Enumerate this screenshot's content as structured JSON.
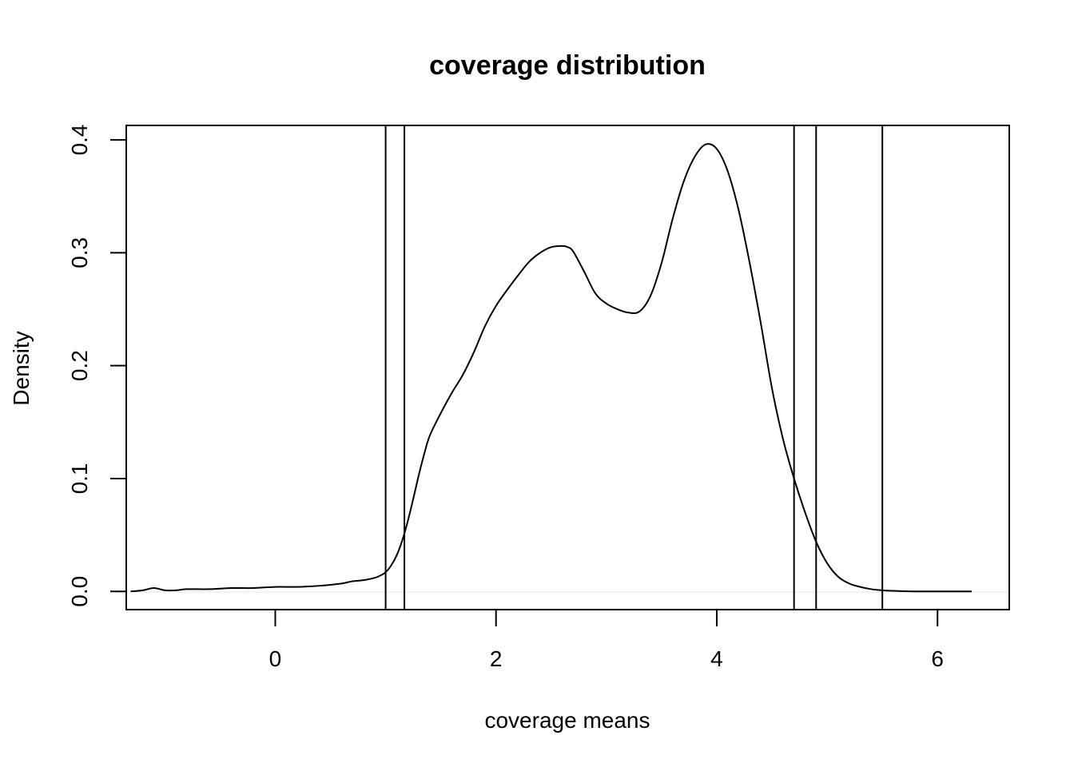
{
  "chart_data": {
    "type": "line",
    "title": "coverage distribution",
    "xlabel": "coverage means",
    "ylabel": "Density",
    "xlim": [
      -1.35,
      6.65
    ],
    "ylim": [
      -0.0161,
      0.4128
    ],
    "x_ticks": [
      0,
      2,
      4,
      6
    ],
    "x_tick_labels": [
      "0",
      "2",
      "4",
      "6"
    ],
    "y_ticks": [
      0.0,
      0.1,
      0.2,
      0.3,
      0.4
    ],
    "y_tick_labels": [
      "0.0",
      "0.1",
      "0.2",
      "0.3",
      "0.4"
    ],
    "grid": false,
    "legend": "none",
    "series": [
      {
        "x": [
          -1.31,
          -1.2,
          -1.1,
          -1.0,
          -0.9,
          -0.8,
          -0.6,
          -0.4,
          -0.2,
          0.0,
          0.2,
          0.4,
          0.6,
          0.7,
          0.8,
          0.9,
          0.95,
          1.0,
          1.05,
          1.1,
          1.15,
          1.2,
          1.25,
          1.3,
          1.35,
          1.4,
          1.5,
          1.6,
          1.7,
          1.8,
          1.9,
          2.0,
          2.1,
          2.2,
          2.3,
          2.4,
          2.5,
          2.6,
          2.65,
          2.7,
          2.8,
          2.9,
          3.0,
          3.1,
          3.2,
          3.3,
          3.4,
          3.5,
          3.6,
          3.7,
          3.8,
          3.9,
          4.0,
          4.1,
          4.2,
          4.3,
          4.4,
          4.5,
          4.6,
          4.7,
          4.8,
          4.9,
          5.0,
          5.1,
          5.2,
          5.3,
          5.4,
          5.5,
          5.6,
          5.7,
          5.8,
          5.9,
          6.0,
          6.15,
          6.31
        ],
        "y": [
          0.0,
          0.001,
          0.003,
          0.001,
          0.001,
          0.002,
          0.002,
          0.003,
          0.003,
          0.004,
          0.004,
          0.005,
          0.007,
          0.009,
          0.01,
          0.012,
          0.014,
          0.017,
          0.023,
          0.032,
          0.045,
          0.062,
          0.082,
          0.103,
          0.122,
          0.138,
          0.158,
          0.176,
          0.192,
          0.212,
          0.235,
          0.253,
          0.267,
          0.28,
          0.292,
          0.3,
          0.305,
          0.306,
          0.305,
          0.301,
          0.283,
          0.264,
          0.255,
          0.25,
          0.247,
          0.248,
          0.262,
          0.291,
          0.33,
          0.363,
          0.385,
          0.396,
          0.392,
          0.372,
          0.337,
          0.29,
          0.237,
          0.18,
          0.135,
          0.1,
          0.07,
          0.044,
          0.025,
          0.013,
          0.007,
          0.004,
          0.002,
          0.001,
          0.0005,
          0.0002,
          0.0,
          0.0,
          0.0,
          0.0,
          0.0
        ]
      }
    ],
    "vertical_lines": [
      1.0,
      1.17,
      4.7,
      4.9,
      5.5
    ]
  }
}
